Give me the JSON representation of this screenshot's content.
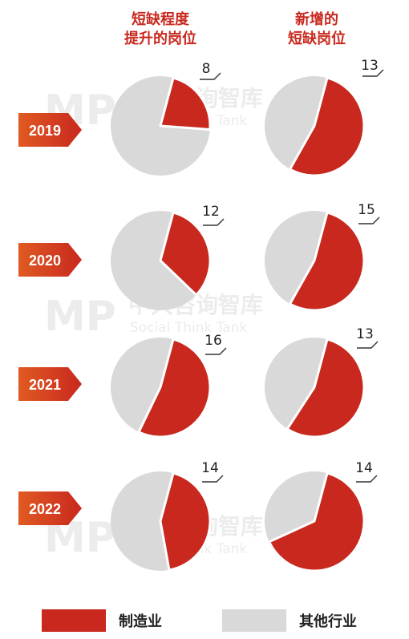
{
  "chart_data": {
    "type": "pie",
    "column_titles": [
      {
        "line1": "短缺程度",
        "line2": "提升的岗位"
      },
      {
        "line1": "新增的",
        "line2": "短缺岗位"
      }
    ],
    "rows": [
      {
        "year": "2019",
        "pies": [
          {
            "label": "8",
            "manufacturing_share": 0.22
          },
          {
            "label": "13",
            "manufacturing_share": 0.54
          }
        ]
      },
      {
        "year": "2020",
        "pies": [
          {
            "label": "12",
            "manufacturing_share": 0.33
          },
          {
            "label": "15",
            "manufacturing_share": 0.54
          }
        ]
      },
      {
        "year": "2021",
        "pies": [
          {
            "label": "16",
            "manufacturing_share": 0.53
          },
          {
            "label": "13",
            "manufacturing_share": 0.55
          }
        ]
      },
      {
        "year": "2022",
        "pies": [
          {
            "label": "14",
            "manufacturing_share": 0.43
          },
          {
            "label": "14",
            "manufacturing_share": 0.64
          }
        ]
      }
    ],
    "legend": [
      {
        "name": "制造业",
        "color": "#c8281e"
      },
      {
        "name": "其他行业",
        "color": "#d9d9d9"
      }
    ]
  },
  "watermark": {
    "logo": "MP",
    "name": "中大咨询智库",
    "tagline": "Social Think Tank"
  },
  "colors": {
    "accent": "#c8281e",
    "other": "#d9d9d9",
    "year_badge": "#d8431e"
  }
}
